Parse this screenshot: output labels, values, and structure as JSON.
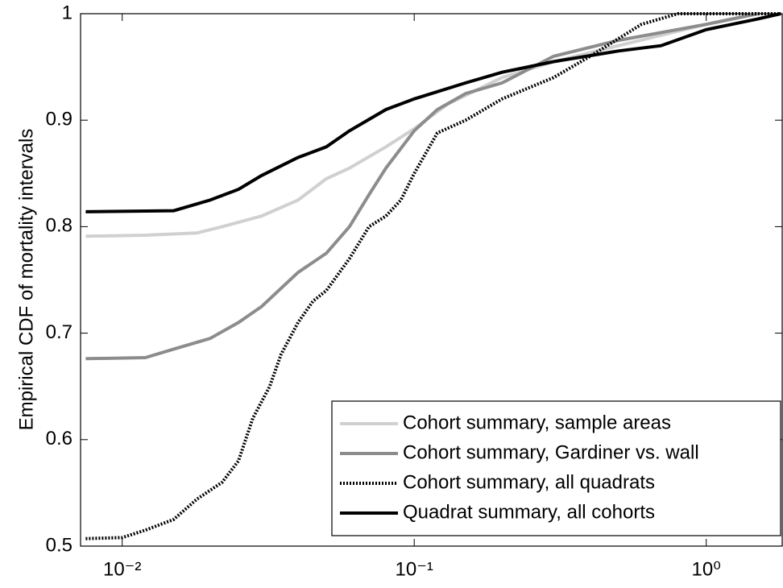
{
  "chart_data": {
    "type": "line",
    "y_label": "Empirical CDF of mortality intervals",
    "x_scale": "log",
    "xlim": [
      0.0072,
      1.82
    ],
    "ylim": [
      0.5,
      1
    ],
    "xticks": [
      {
        "value": 0.01,
        "label": "10⁻²"
      },
      {
        "value": 0.1,
        "label": "10⁻¹"
      },
      {
        "value": 1,
        "label": "10⁰"
      }
    ],
    "yticks": [
      0.5,
      0.6,
      0.7,
      0.8,
      0.9,
      1
    ],
    "legend": "lower right",
    "series": [
      {
        "name": "Cohort summary, sample areas",
        "color": "#d0d0d0",
        "style": "solid",
        "x": [
          0.0075,
          0.012,
          0.018,
          0.022,
          0.03,
          0.04,
          0.05,
          0.06,
          0.08,
          0.1,
          0.13,
          0.2,
          0.3,
          0.5,
          1,
          1.5
        ],
        "values": [
          0.791,
          0.792,
          0.794,
          0.8,
          0.81,
          0.825,
          0.845,
          0.855,
          0.875,
          0.892,
          0.915,
          0.94,
          0.955,
          0.97,
          0.99,
          1.0
        ]
      },
      {
        "name": "Cohort summary, Gardiner vs. wall",
        "color": "#8c8c8c",
        "style": "solid",
        "x": [
          0.0075,
          0.012,
          0.015,
          0.02,
          0.025,
          0.03,
          0.04,
          0.05,
          0.06,
          0.07,
          0.08,
          0.1,
          0.12,
          0.15,
          0.2,
          0.3,
          0.5,
          1,
          1.5
        ],
        "values": [
          0.676,
          0.677,
          0.685,
          0.695,
          0.71,
          0.725,
          0.757,
          0.775,
          0.8,
          0.83,
          0.855,
          0.89,
          0.91,
          0.925,
          0.935,
          0.96,
          0.975,
          0.99,
          1.0
        ]
      },
      {
        "name": "Cohort summary, all quadrats",
        "color": "#000000",
        "style": "dotted",
        "x": [
          0.0075,
          0.01,
          0.012,
          0.015,
          0.018,
          0.022,
          0.025,
          0.028,
          0.032,
          0.035,
          0.04,
          0.045,
          0.05,
          0.06,
          0.07,
          0.08,
          0.09,
          0.1,
          0.12,
          0.15,
          0.2,
          0.3,
          0.4,
          0.6,
          0.8,
          1.8
        ],
        "values": [
          0.507,
          0.508,
          0.515,
          0.525,
          0.544,
          0.56,
          0.58,
          0.62,
          0.65,
          0.68,
          0.71,
          0.73,
          0.74,
          0.77,
          0.8,
          0.81,
          0.825,
          0.85,
          0.888,
          0.9,
          0.92,
          0.94,
          0.96,
          0.99,
          1.0,
          1.0
        ]
      },
      {
        "name": "Quadrat summary, all cohorts",
        "color": "#000000",
        "style": "solid",
        "x": [
          0.0075,
          0.015,
          0.02,
          0.025,
          0.03,
          0.04,
          0.05,
          0.06,
          0.08,
          0.1,
          0.15,
          0.2,
          0.3,
          0.5,
          0.7,
          1,
          1.5,
          1.8
        ],
        "values": [
          0.814,
          0.815,
          0.825,
          0.835,
          0.848,
          0.865,
          0.875,
          0.89,
          0.91,
          0.92,
          0.935,
          0.945,
          0.955,
          0.965,
          0.97,
          0.985,
          0.995,
          1.0
        ]
      }
    ]
  }
}
